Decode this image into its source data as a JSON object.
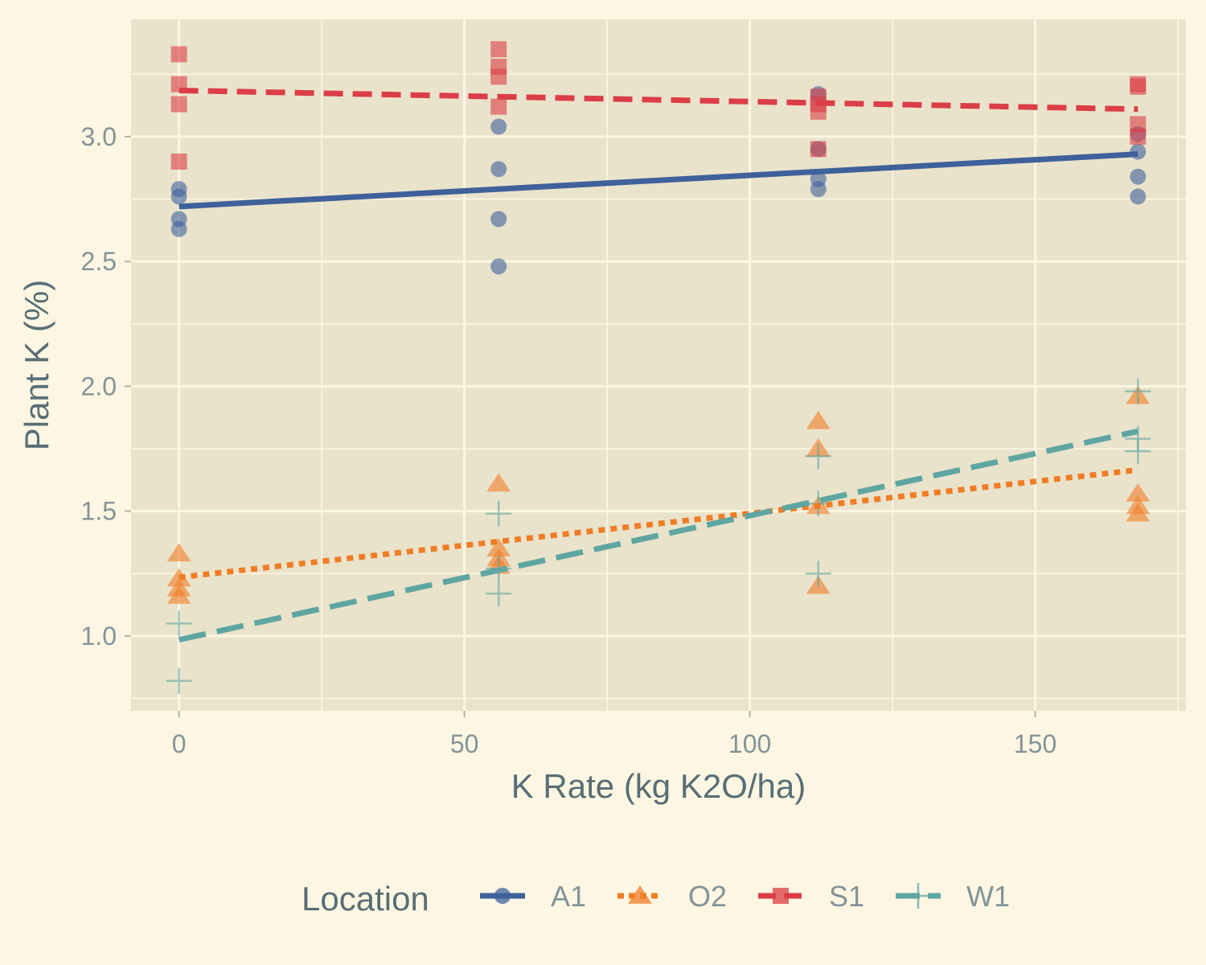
{
  "chart_data": {
    "type": "scatter",
    "title": "",
    "xlabel": "K Rate (kg K2O/ha)",
    "ylabel": "Plant K (%)",
    "xlim": [
      -8.4,
      176.4
    ],
    "ylim": [
      0.7,
      3.47
    ],
    "x_ticks": [
      0,
      50,
      100,
      150
    ],
    "x_tick_labels": [
      "0",
      "50",
      "100",
      "150"
    ],
    "y_ticks": [
      1.0,
      1.5,
      2.0,
      2.5,
      3.0
    ],
    "y_tick_labels": [
      "1.0",
      "1.5",
      "2.0",
      "2.5",
      "3.0"
    ],
    "grid": true,
    "legend": {
      "title": "Location",
      "position": "bottom"
    },
    "series": [
      {
        "name": "A1",
        "color": "#3e619b",
        "marker": "circle",
        "linetype": "solid",
        "points": [
          [
            0,
            2.79
          ],
          [
            0,
            2.76
          ],
          [
            0,
            2.67
          ],
          [
            0,
            2.63
          ],
          [
            56,
            3.04
          ],
          [
            56,
            2.87
          ],
          [
            56,
            2.67
          ],
          [
            56,
            2.48
          ],
          [
            112,
            3.17
          ],
          [
            112,
            2.95
          ],
          [
            112,
            2.83
          ],
          [
            112,
            2.79
          ],
          [
            168,
            3.01
          ],
          [
            168,
            2.94
          ],
          [
            168,
            2.84
          ],
          [
            168,
            2.76
          ]
        ],
        "fit": [
          [
            0,
            2.72
          ],
          [
            168,
            2.93
          ]
        ]
      },
      {
        "name": "O2",
        "color": "#f07d26",
        "marker": "triangle",
        "linetype": "dotted",
        "points": [
          [
            0,
            1.33
          ],
          [
            0,
            1.23
          ],
          [
            0,
            1.19
          ],
          [
            0,
            1.16
          ],
          [
            56,
            1.61
          ],
          [
            56,
            1.35
          ],
          [
            56,
            1.31
          ],
          [
            56,
            1.28
          ],
          [
            112,
            1.86
          ],
          [
            112,
            1.75
          ],
          [
            112,
            1.52
          ],
          [
            112,
            1.2
          ],
          [
            168,
            1.96
          ],
          [
            168,
            1.57
          ],
          [
            168,
            1.52
          ],
          [
            168,
            1.49
          ]
        ],
        "fit": [
          [
            0,
            1.235
          ],
          [
            168,
            1.665
          ]
        ]
      },
      {
        "name": "S1",
        "color": "#db3e46",
        "marker": "square",
        "linetype": "dashed",
        "points": [
          [
            0,
            3.33
          ],
          [
            0,
            3.21
          ],
          [
            0,
            3.13
          ],
          [
            0,
            2.9
          ],
          [
            56,
            3.35
          ],
          [
            56,
            3.28
          ],
          [
            56,
            3.24
          ],
          [
            56,
            3.12
          ],
          [
            112,
            3.16
          ],
          [
            112,
            3.13
          ],
          [
            112,
            3.1
          ],
          [
            112,
            2.95
          ],
          [
            168,
            3.21
          ],
          [
            168,
            3.2
          ],
          [
            168,
            3.05
          ],
          [
            168,
            3.0
          ]
        ],
        "fit": [
          [
            0,
            3.185
          ],
          [
            168,
            3.11
          ]
        ]
      },
      {
        "name": "W1",
        "color": "#5fa6a2",
        "marker": "plus",
        "linetype": "longdash",
        "points": [
          [
            0,
            1.05
          ],
          [
            0,
            0.82
          ],
          [
            56,
            1.49
          ],
          [
            56,
            1.27
          ],
          [
            56,
            1.17
          ],
          [
            112,
            1.72
          ],
          [
            112,
            1.53
          ],
          [
            112,
            1.25
          ],
          [
            168,
            1.98
          ],
          [
            168,
            1.79
          ],
          [
            168,
            1.74
          ]
        ],
        "fit": [
          [
            0,
            0.985
          ],
          [
            168,
            1.82
          ]
        ]
      }
    ]
  }
}
